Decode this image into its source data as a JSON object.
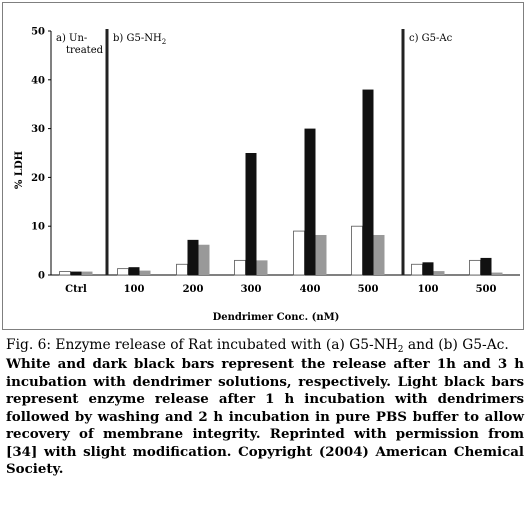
{
  "chart_data": {
    "type": "bar",
    "ylabel": "% LDH",
    "xlabel": "Dendrimer Conc. (nM)",
    "ylim": [
      0,
      50
    ],
    "yticks": [
      "0",
      "10",
      "20",
      "30",
      "40",
      "50"
    ],
    "panels": [
      {
        "label": "a) Un-",
        "label2": "treated",
        "sub": ""
      },
      {
        "label": "b) G5-NH",
        "label2": "",
        "sub": "2"
      },
      {
        "label": "c) G5-Ac",
        "label2": "",
        "sub": ""
      }
    ],
    "categories": [
      "Ctrl",
      "100",
      "200",
      "300",
      "400",
      "500",
      "100",
      "500"
    ],
    "category_panel": [
      0,
      1,
      1,
      1,
      1,
      1,
      2,
      2
    ],
    "series": [
      {
        "name": "",
        "color": "#ffffff",
        "values": [
          0.7,
          1.3,
          2.2,
          3.0,
          9.0,
          10.0,
          2.2,
          3.0
        ]
      },
      {
        "name": "",
        "color": "#111111",
        "values": [
          0.7,
          1.6,
          7.2,
          25.0,
          30.0,
          38.0,
          2.6,
          3.5
        ]
      },
      {
        "name": "",
        "color": "#999999",
        "values": [
          0.7,
          0.9,
          6.2,
          3.0,
          8.2,
          8.2,
          0.8,
          0.5
        ]
      }
    ],
    "grid": false,
    "legend": "none"
  },
  "caption": {
    "title_pre": "Fig. 6: Enzyme release of Rat incubated with (a) G5-NH",
    "title_sub": "2",
    "title_post": " and (b) G5-Ac.",
    "body": "White and dark black bars represent the release after 1h and 3 h incubation with dendrimer solutions, respectively. Light black bars represent enzyme release after 1 h incubation with dendrimers followed by washing and 2 h incubation in pure PBS buffer to allow recovery of membrane integrity. Reprinted with permission from [34] with slight modification. Copyright (2004) American Chemical Society."
  }
}
